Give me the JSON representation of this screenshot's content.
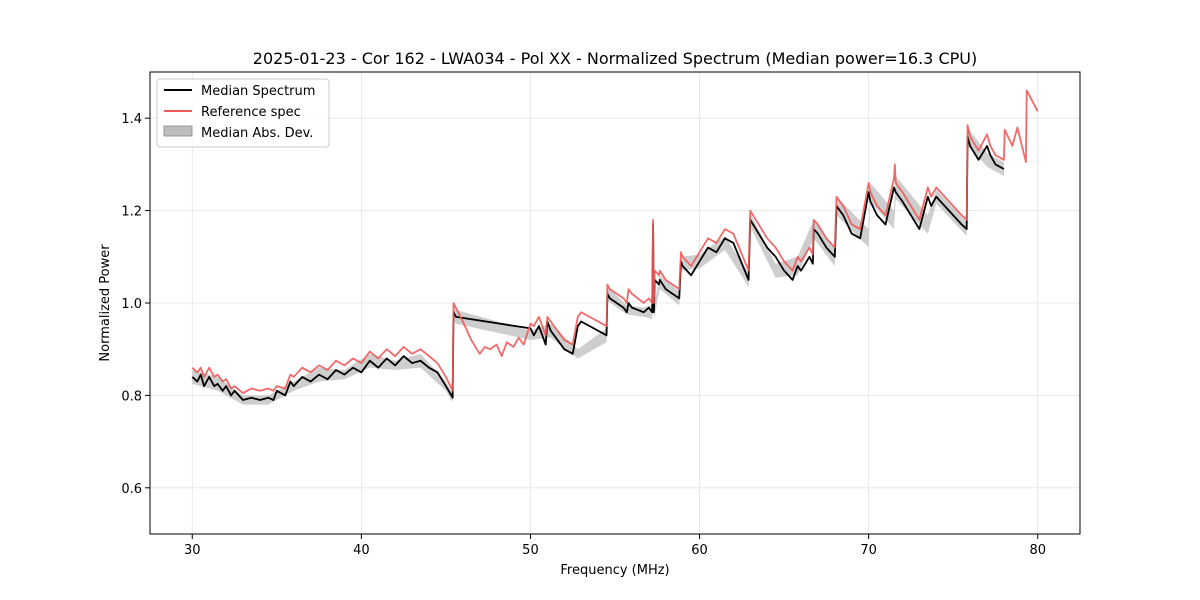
{
  "chart_data": {
    "type": "line",
    "title": "2025-01-23 - Cor 162 - LWA034 - Pol XX - Normalized Spectrum (Median power=16.3 CPU)",
    "xlabel": "Frequency (MHz)",
    "ylabel": "Normalized Power",
    "xlim": [
      27.5,
      82.5
    ],
    "ylim": [
      0.5,
      1.5
    ],
    "xticks": [
      30,
      40,
      50,
      60,
      70,
      80
    ],
    "yticks": [
      0.6,
      0.8,
      1.0,
      1.2,
      1.4
    ],
    "xtick_labels": [
      "30",
      "40",
      "50",
      "60",
      "70",
      "80"
    ],
    "ytick_labels": [
      "0.6",
      "0.8",
      "1.0",
      "1.2",
      "1.4"
    ],
    "grid": true,
    "legend_position": "top-left",
    "legend": [
      "Median Spectrum",
      "Reference spec",
      "Median Abs. Dev."
    ],
    "colors": {
      "median": "#000000",
      "reference": "#f05a5a",
      "mad_fill": "#bdbdbd",
      "grid": "#e3e3e3",
      "frame": "#000000"
    },
    "series": [
      {
        "name": "Median Spectrum",
        "x": [
          30.0,
          30.3,
          30.5,
          30.7,
          31.0,
          31.3,
          31.5,
          31.8,
          32.0,
          32.3,
          32.5,
          33.0,
          33.5,
          34.0,
          34.5,
          34.8,
          35.0,
          35.5,
          35.8,
          36.0,
          36.5,
          37.0,
          37.5,
          38.0,
          38.5,
          39.0,
          39.5,
          40.0,
          40.5,
          41.0,
          41.5,
          42.0,
          42.5,
          43.0,
          43.5,
          44.0,
          44.5,
          45.0,
          45.4,
          45.45,
          45.6,
          50.0,
          50.2,
          50.5,
          50.9,
          51.0,
          51.2,
          52.0,
          52.5,
          52.8,
          53.0,
          54.5,
          54.55,
          54.7,
          55.5,
          55.7,
          55.8,
          56.0,
          56.7,
          57.0,
          57.2,
          57.25,
          57.3,
          57.35,
          57.6,
          57.65,
          58.0,
          58.8,
          58.9,
          59.0,
          59.5,
          60.0,
          60.5,
          61.0,
          61.5,
          62.0,
          62.9,
          63.0,
          63.5,
          64.0,
          64.5,
          65.0,
          65.5,
          65.8,
          66.0,
          66.5,
          66.7,
          66.75,
          67.0,
          67.5,
          68.0,
          68.1,
          68.5,
          69.0,
          69.5,
          70.0,
          70.1,
          70.5,
          71.0,
          71.5,
          71.6,
          72.0,
          73.0,
          73.5,
          73.7,
          74.0,
          74.5,
          75.0,
          75.5,
          75.8,
          75.85,
          76.0,
          76.5,
          77.0,
          77.2,
          77.5,
          78.0
        ],
        "y": [
          0.84,
          0.83,
          0.845,
          0.82,
          0.84,
          0.82,
          0.825,
          0.81,
          0.82,
          0.8,
          0.81,
          0.79,
          0.795,
          0.79,
          0.795,
          0.79,
          0.81,
          0.8,
          0.83,
          0.82,
          0.84,
          0.83,
          0.845,
          0.835,
          0.855,
          0.845,
          0.86,
          0.85,
          0.875,
          0.86,
          0.88,
          0.865,
          0.885,
          0.87,
          0.875,
          0.86,
          0.85,
          0.82,
          0.795,
          0.98,
          0.97,
          0.945,
          0.93,
          0.95,
          0.91,
          0.96,
          0.94,
          0.9,
          0.89,
          0.95,
          0.96,
          0.93,
          1.02,
          1.01,
          0.99,
          0.98,
          1.0,
          0.99,
          0.98,
          0.99,
          0.98,
          1.17,
          0.98,
          1.05,
          1.04,
          1.05,
          1.03,
          1.01,
          1.09,
          1.08,
          1.06,
          1.09,
          1.12,
          1.11,
          1.14,
          1.13,
          1.05,
          1.18,
          1.15,
          1.12,
          1.1,
          1.07,
          1.05,
          1.08,
          1.07,
          1.1,
          1.085,
          1.16,
          1.15,
          1.12,
          1.1,
          1.21,
          1.19,
          1.15,
          1.14,
          1.24,
          1.22,
          1.19,
          1.17,
          1.25,
          1.24,
          1.22,
          1.16,
          1.23,
          1.21,
          1.23,
          1.21,
          1.19,
          1.17,
          1.16,
          1.36,
          1.34,
          1.31,
          1.34,
          1.32,
          1.3,
          1.29
        ]
      },
      {
        "name": "Reference spec",
        "x": [
          30.0,
          30.3,
          30.5,
          30.7,
          31.0,
          31.3,
          31.5,
          31.8,
          32.0,
          32.3,
          32.5,
          33.0,
          33.5,
          34.0,
          34.5,
          34.8,
          35.0,
          35.5,
          35.8,
          36.0,
          36.5,
          37.0,
          37.5,
          38.0,
          38.5,
          39.0,
          39.5,
          40.0,
          40.5,
          41.0,
          41.5,
          42.0,
          42.5,
          43.0,
          43.5,
          44.0,
          44.5,
          45.0,
          45.4,
          45.45,
          46.0,
          46.5,
          47.0,
          47.3,
          47.6,
          48.0,
          48.3,
          48.6,
          49.0,
          49.3,
          49.6,
          50.0,
          50.2,
          50.5,
          50.9,
          51.0,
          51.2,
          52.0,
          52.5,
          52.8,
          53.0,
          54.5,
          54.55,
          54.7,
          55.5,
          55.7,
          55.8,
          56.0,
          56.7,
          57.0,
          57.2,
          57.25,
          57.3,
          57.35,
          57.6,
          57.65,
          58.0,
          58.8,
          58.9,
          59.0,
          59.5,
          60.0,
          60.5,
          61.0,
          61.5,
          62.0,
          62.9,
          63.0,
          63.5,
          64.0,
          64.5,
          65.0,
          65.5,
          65.8,
          66.0,
          66.5,
          66.7,
          66.75,
          67.0,
          67.5,
          68.0,
          68.1,
          68.5,
          69.0,
          69.5,
          70.0,
          70.1,
          70.5,
          71.0,
          71.5,
          71.55,
          71.6,
          72.0,
          73.0,
          73.5,
          73.7,
          74.0,
          74.5,
          75.0,
          75.5,
          75.8,
          75.85,
          76.0,
          76.5,
          77.0,
          77.2,
          77.5,
          78.0,
          78.05,
          78.5,
          78.8,
          79.3,
          79.35,
          80.0
        ],
        "y": [
          0.86,
          0.85,
          0.86,
          0.84,
          0.86,
          0.84,
          0.845,
          0.83,
          0.835,
          0.815,
          0.82,
          0.805,
          0.815,
          0.81,
          0.815,
          0.81,
          0.82,
          0.815,
          0.845,
          0.84,
          0.86,
          0.85,
          0.865,
          0.855,
          0.875,
          0.865,
          0.88,
          0.87,
          0.895,
          0.88,
          0.9,
          0.885,
          0.905,
          0.89,
          0.9,
          0.885,
          0.87,
          0.84,
          0.81,
          1.0,
          0.96,
          0.92,
          0.89,
          0.905,
          0.9,
          0.91,
          0.885,
          0.915,
          0.905,
          0.925,
          0.91,
          0.955,
          0.95,
          0.97,
          0.93,
          0.97,
          0.96,
          0.92,
          0.91,
          0.97,
          0.98,
          0.95,
          1.04,
          1.03,
          1.01,
          1.0,
          1.03,
          1.02,
          1.0,
          1.01,
          1.0,
          1.18,
          1.0,
          1.07,
          1.06,
          1.07,
          1.05,
          1.03,
          1.11,
          1.1,
          1.08,
          1.11,
          1.14,
          1.13,
          1.16,
          1.15,
          1.07,
          1.2,
          1.17,
          1.14,
          1.12,
          1.09,
          1.07,
          1.1,
          1.09,
          1.12,
          1.105,
          1.18,
          1.17,
          1.14,
          1.12,
          1.23,
          1.21,
          1.17,
          1.16,
          1.26,
          1.24,
          1.21,
          1.19,
          1.27,
          1.3,
          1.26,
          1.24,
          1.18,
          1.25,
          1.23,
          1.25,
          1.23,
          1.21,
          1.19,
          1.18,
          1.385,
          1.36,
          1.33,
          1.365,
          1.34,
          1.32,
          1.31,
          1.375,
          1.34,
          1.38,
          1.305,
          1.46,
          1.415
        ]
      }
    ],
    "mad_band": {
      "name": "Median Abs. Dev.",
      "x": [
        30.0,
        31.5,
        33.0,
        34.5,
        36.0,
        37.5,
        39.0,
        40.5,
        42.0,
        43.5,
        45.0,
        45.4,
        45.45,
        45.6,
        50.0,
        51.2,
        52.8,
        54.5,
        54.55,
        55.7,
        56.7,
        57.2,
        57.25,
        57.3,
        57.65,
        58.8,
        58.9,
        60.0,
        61.5,
        62.9,
        63.0,
        64.5,
        65.8,
        66.75,
        68.0,
        68.1,
        70.0,
        70.1,
        71.5,
        71.6,
        73.5,
        74.0,
        75.8,
        75.85,
        77.0,
        78.0
      ],
      "lower": [
        0.825,
        0.81,
        0.78,
        0.78,
        0.81,
        0.83,
        0.835,
        0.86,
        0.855,
        0.86,
        0.81,
        0.785,
        0.965,
        0.955,
        0.92,
        0.925,
        0.88,
        0.915,
        1.005,
        0.975,
        0.97,
        0.965,
        1.15,
        0.965,
        1.03,
        0.995,
        1.07,
        1.075,
        1.115,
        1.035,
        1.165,
        1.055,
        1.06,
        1.14,
        1.08,
        1.19,
        1.12,
        1.22,
        1.16,
        1.225,
        1.15,
        1.215,
        1.145,
        1.34,
        1.295,
        1.275
      ],
      "upper": [
        0.855,
        0.84,
        0.8,
        0.8,
        0.83,
        0.86,
        0.855,
        0.89,
        0.875,
        0.89,
        0.83,
        0.805,
        0.995,
        0.985,
        0.94,
        0.955,
        0.9,
        0.945,
        1.035,
        0.995,
        0.99,
        0.995,
        1.19,
        0.995,
        1.06,
        1.025,
        1.1,
        1.105,
        1.145,
        1.065,
        1.195,
        1.085,
        1.1,
        1.18,
        1.12,
        1.23,
        1.16,
        1.26,
        1.2,
        1.275,
        1.19,
        1.245,
        1.175,
        1.38,
        1.325,
        1.305
      ]
    }
  }
}
